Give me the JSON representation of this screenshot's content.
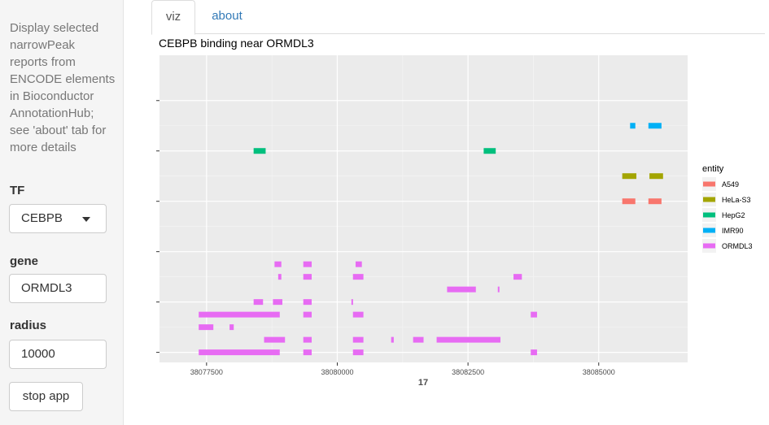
{
  "sidebar": {
    "description": "Display selected narrowPeak reports from ENCODE elements in Bioconductor AnnotationHub; see 'about' tab for more details",
    "tf_label": "TF",
    "tf_value": "CEBPB",
    "gene_label": "gene",
    "gene_value": "ORMDL3",
    "radius_label": "radius",
    "radius_value": "10000",
    "stop_label": "stop app"
  },
  "tabs": [
    {
      "label": "viz"
    },
    {
      "label": "about"
    }
  ],
  "chart_data": {
    "type": "range",
    "title": "CEBPB binding near ORMDL3",
    "xlabel": "17",
    "ylabel": "",
    "xlim": [
      38076600,
      38086700
    ],
    "x_ticks": [
      38077500,
      38080000,
      38082500,
      38085000
    ],
    "x_tick_labels": [
      "38077500",
      "38080000",
      "38082500",
      "38085000"
    ],
    "y_ticks": [
      1,
      2,
      3,
      4,
      5,
      6
    ],
    "y_tick_labels": [
      "",
      "",
      "",
      "",
      "",
      ""
    ],
    "ylim": [
      0.8,
      6.9
    ],
    "grid": true,
    "legend_title": "entity",
    "legend_position": "right",
    "series": [
      {
        "name": "A549",
        "color": "#F8766D",
        "ranges": [
          {
            "start": 38085450,
            "end": 38085700,
            "y": 4
          },
          {
            "start": 38085950,
            "end": 38086200,
            "y": 4
          }
        ]
      },
      {
        "name": "HeLa-S3",
        "color": "#A3A500",
        "ranges": [
          {
            "start": 38085450,
            "end": 38085720,
            "y": 4.5
          },
          {
            "start": 38085970,
            "end": 38086230,
            "y": 4.5
          }
        ]
      },
      {
        "name": "HepG2",
        "color": "#00BF7D",
        "ranges": [
          {
            "start": 38078400,
            "end": 38078630,
            "y": 5
          },
          {
            "start": 38082800,
            "end": 38083030,
            "y": 5
          }
        ]
      },
      {
        "name": "IMR90",
        "color": "#00B0F6",
        "ranges": [
          {
            "start": 38085600,
            "end": 38085700,
            "y": 5.5
          },
          {
            "start": 38085950,
            "end": 38086200,
            "y": 5.5
          }
        ]
      },
      {
        "name": "ORMDL3",
        "color": "#E76BF3",
        "ranges": [
          {
            "start": 38077350,
            "end": 38078900,
            "y": 1
          },
          {
            "start": 38079350,
            "end": 38079510,
            "y": 1
          },
          {
            "start": 38080300,
            "end": 38080500,
            "y": 1
          },
          {
            "start": 38083700,
            "end": 38083820,
            "y": 1
          },
          {
            "start": 38078600,
            "end": 38079000,
            "y": 1.25
          },
          {
            "start": 38079350,
            "end": 38079510,
            "y": 1.25
          },
          {
            "start": 38080300,
            "end": 38080500,
            "y": 1.25
          },
          {
            "start": 38081030,
            "end": 38081080,
            "y": 1.25
          },
          {
            "start": 38081450,
            "end": 38081650,
            "y": 1.25
          },
          {
            "start": 38081900,
            "end": 38083120,
            "y": 1.25
          },
          {
            "start": 38077350,
            "end": 38077630,
            "y": 1.5
          },
          {
            "start": 38077940,
            "end": 38078020,
            "y": 1.5
          },
          {
            "start": 38077350,
            "end": 38078900,
            "y": 1.75
          },
          {
            "start": 38079350,
            "end": 38079510,
            "y": 1.75
          },
          {
            "start": 38080300,
            "end": 38080500,
            "y": 1.75
          },
          {
            "start": 38083700,
            "end": 38083820,
            "y": 1.75
          },
          {
            "start": 38078400,
            "end": 38078580,
            "y": 2
          },
          {
            "start": 38078770,
            "end": 38078950,
            "y": 2
          },
          {
            "start": 38079350,
            "end": 38079510,
            "y": 2
          },
          {
            "start": 38080270,
            "end": 38080300,
            "y": 2
          },
          {
            "start": 38082100,
            "end": 38082650,
            "y": 2.25
          },
          {
            "start": 38083070,
            "end": 38083100,
            "y": 2.25
          },
          {
            "start": 38078870,
            "end": 38078930,
            "y": 2.5
          },
          {
            "start": 38079350,
            "end": 38079510,
            "y": 2.5
          },
          {
            "start": 38080300,
            "end": 38080500,
            "y": 2.5
          },
          {
            "start": 38083370,
            "end": 38083530,
            "y": 2.5
          },
          {
            "start": 38078800,
            "end": 38078930,
            "y": 2.75
          },
          {
            "start": 38079350,
            "end": 38079510,
            "y": 2.75
          },
          {
            "start": 38080350,
            "end": 38080470,
            "y": 2.75
          }
        ]
      }
    ]
  }
}
